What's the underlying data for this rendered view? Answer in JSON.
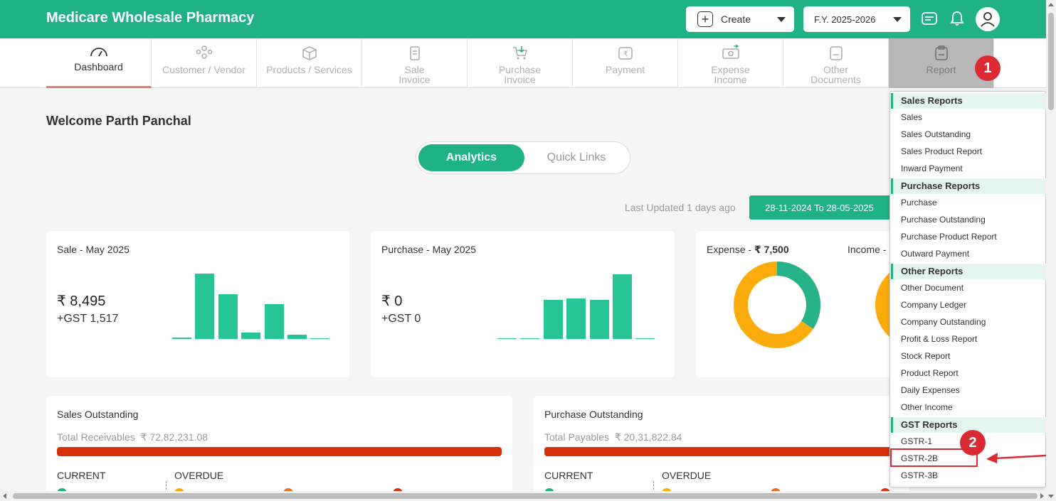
{
  "header": {
    "company_name": "Medicare Wholesale Pharmacy",
    "create_label": "Create",
    "fy_label": "F.Y. 2025-2026"
  },
  "nav_tabs": [
    {
      "label": "Dashboard",
      "icon": "speedometer-icon"
    },
    {
      "label": "Customer / Vendor",
      "icon": "users-icon"
    },
    {
      "label": "Products / Services",
      "icon": "box-icon"
    },
    {
      "label": "Sale Invoice",
      "icon": "invoice-icon"
    },
    {
      "label": "Purchase Invoice",
      "icon": "cart-icon"
    },
    {
      "label": "Payment",
      "icon": "rupee-note-icon"
    },
    {
      "label": "Expense Income",
      "icon": "money-exchange-icon"
    },
    {
      "label": "Other Documents",
      "icon": "document-icon"
    },
    {
      "label": "Report",
      "icon": "clipboard-icon"
    }
  ],
  "annotations": {
    "step1": "1",
    "step2": "2"
  },
  "welcome": "Welcome Parth Panchal",
  "toggle": {
    "active": "Analytics",
    "inactive": "Quick Links"
  },
  "last_updated": "Last Updated 1 days ago",
  "date_range": "28-11-2024 To 28-05-2025",
  "sale_card": {
    "title": "Sale - May 2025",
    "amount": "₹ 8,495",
    "gst": "+GST 1,517",
    "bar_values": [
      0.02,
      1.0,
      0.68,
      0.1,
      0.53,
      0.06,
      0.01
    ]
  },
  "purchase_card": {
    "title": "Purchase - May 2025",
    "amount": "₹ 0",
    "gst": "+GST 0",
    "bar_values": [
      0.01,
      0.01,
      0.6,
      0.62,
      0.6,
      0.99,
      0.01
    ]
  },
  "expense_card": {
    "expense_label": "Expense - ",
    "expense_value": "₹ 7,500",
    "income_label": "Income -"
  },
  "sales_outstanding": {
    "title": "Sales Outstanding",
    "total_label": "Total Receivables",
    "total_value": "₹ 72,82,231.08",
    "current": "CURRENT",
    "overdue": "OVERDUE"
  },
  "purchase_outstanding": {
    "title": "Purchase Outstanding",
    "total_label": "Total Payables",
    "total_value": "₹ 20,31,822.84",
    "current": "CURRENT",
    "overdue": "OVERDUE"
  },
  "report_menu": {
    "sales_reports": {
      "heading": "Sales Reports",
      "items": [
        "Sales",
        "Sales Outstanding",
        "Sales Product Report",
        "Inward Payment"
      ]
    },
    "purchase_reports": {
      "heading": "Purchase Reports",
      "items": [
        "Purchase",
        "Purchase Outstanding",
        "Purchase Product Report",
        "Outward Payment"
      ]
    },
    "other_reports": {
      "heading": "Other Reports",
      "items": [
        "Other Document",
        "Company Ledger",
        "Company Outstanding",
        "Profit & Loss Report",
        "Stock Report",
        "Product Report",
        "Daily Expenses",
        "Other Income"
      ]
    },
    "gst_reports": {
      "heading": "GST Reports",
      "items": [
        "GSTR-1",
        "GSTR-2B",
        "GSTR-3B"
      ]
    }
  },
  "colors": {
    "brand": "#1fb287",
    "bar": "#26c497",
    "donut_orange": "#fbac0c",
    "outstanding_bar": "#d5300a",
    "annotation_red": "#dc2a35"
  }
}
